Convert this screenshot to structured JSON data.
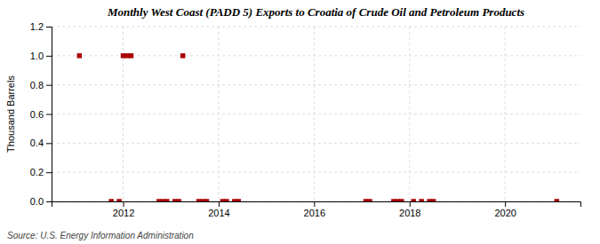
{
  "chart_data": {
    "type": "scatter",
    "title": "Monthly West Coast (PADD 5) Exports to Croatia of Crude Oil and Petroleum Products",
    "ylabel": "Thousand Barrels",
    "source": "Source: U.S. Energy Information Administration",
    "x": [
      2011.0833,
      2011.75,
      2011.9167,
      2012.0,
      2012.0833,
      2012.1667,
      2012.75,
      2012.8333,
      2012.9167,
      2013.0833,
      2013.1667,
      2013.25,
      2013.5833,
      2013.6667,
      2013.75,
      2014.0833,
      2014.1667,
      2014.3333,
      2014.4167,
      2017.0833,
      2017.1667,
      2017.6667,
      2017.75,
      2017.8333,
      2018.0833,
      2018.25,
      2018.4167,
      2018.5,
      2021.0833
    ],
    "values": [
      1.0,
      0.0,
      0.0,
      1.0,
      1.0,
      1.0,
      0.0,
      0.0,
      0.0,
      0.0,
      0.0,
      1.0,
      0.0,
      0.0,
      0.0,
      0.0,
      0.0,
      0.0,
      0.0,
      0.0,
      0.0,
      0.0,
      0.0,
      0.0,
      0.0,
      0.0,
      0.0,
      0.0,
      0.0
    ],
    "color": "#aa0000",
    "marker": "square",
    "xlim": [
      2010.5,
      2021.58
    ],
    "xticks": [
      2012,
      2014,
      2016,
      2018,
      2020
    ],
    "ylim": [
      0.0,
      1.2
    ],
    "yticks": [
      {
        "value": 0.0,
        "label": "0.0"
      },
      0.2,
      0.4,
      0.6,
      0.8,
      {
        "value": 1.0,
        "label": "1.0"
      },
      1.2
    ],
    "grid": true
  }
}
